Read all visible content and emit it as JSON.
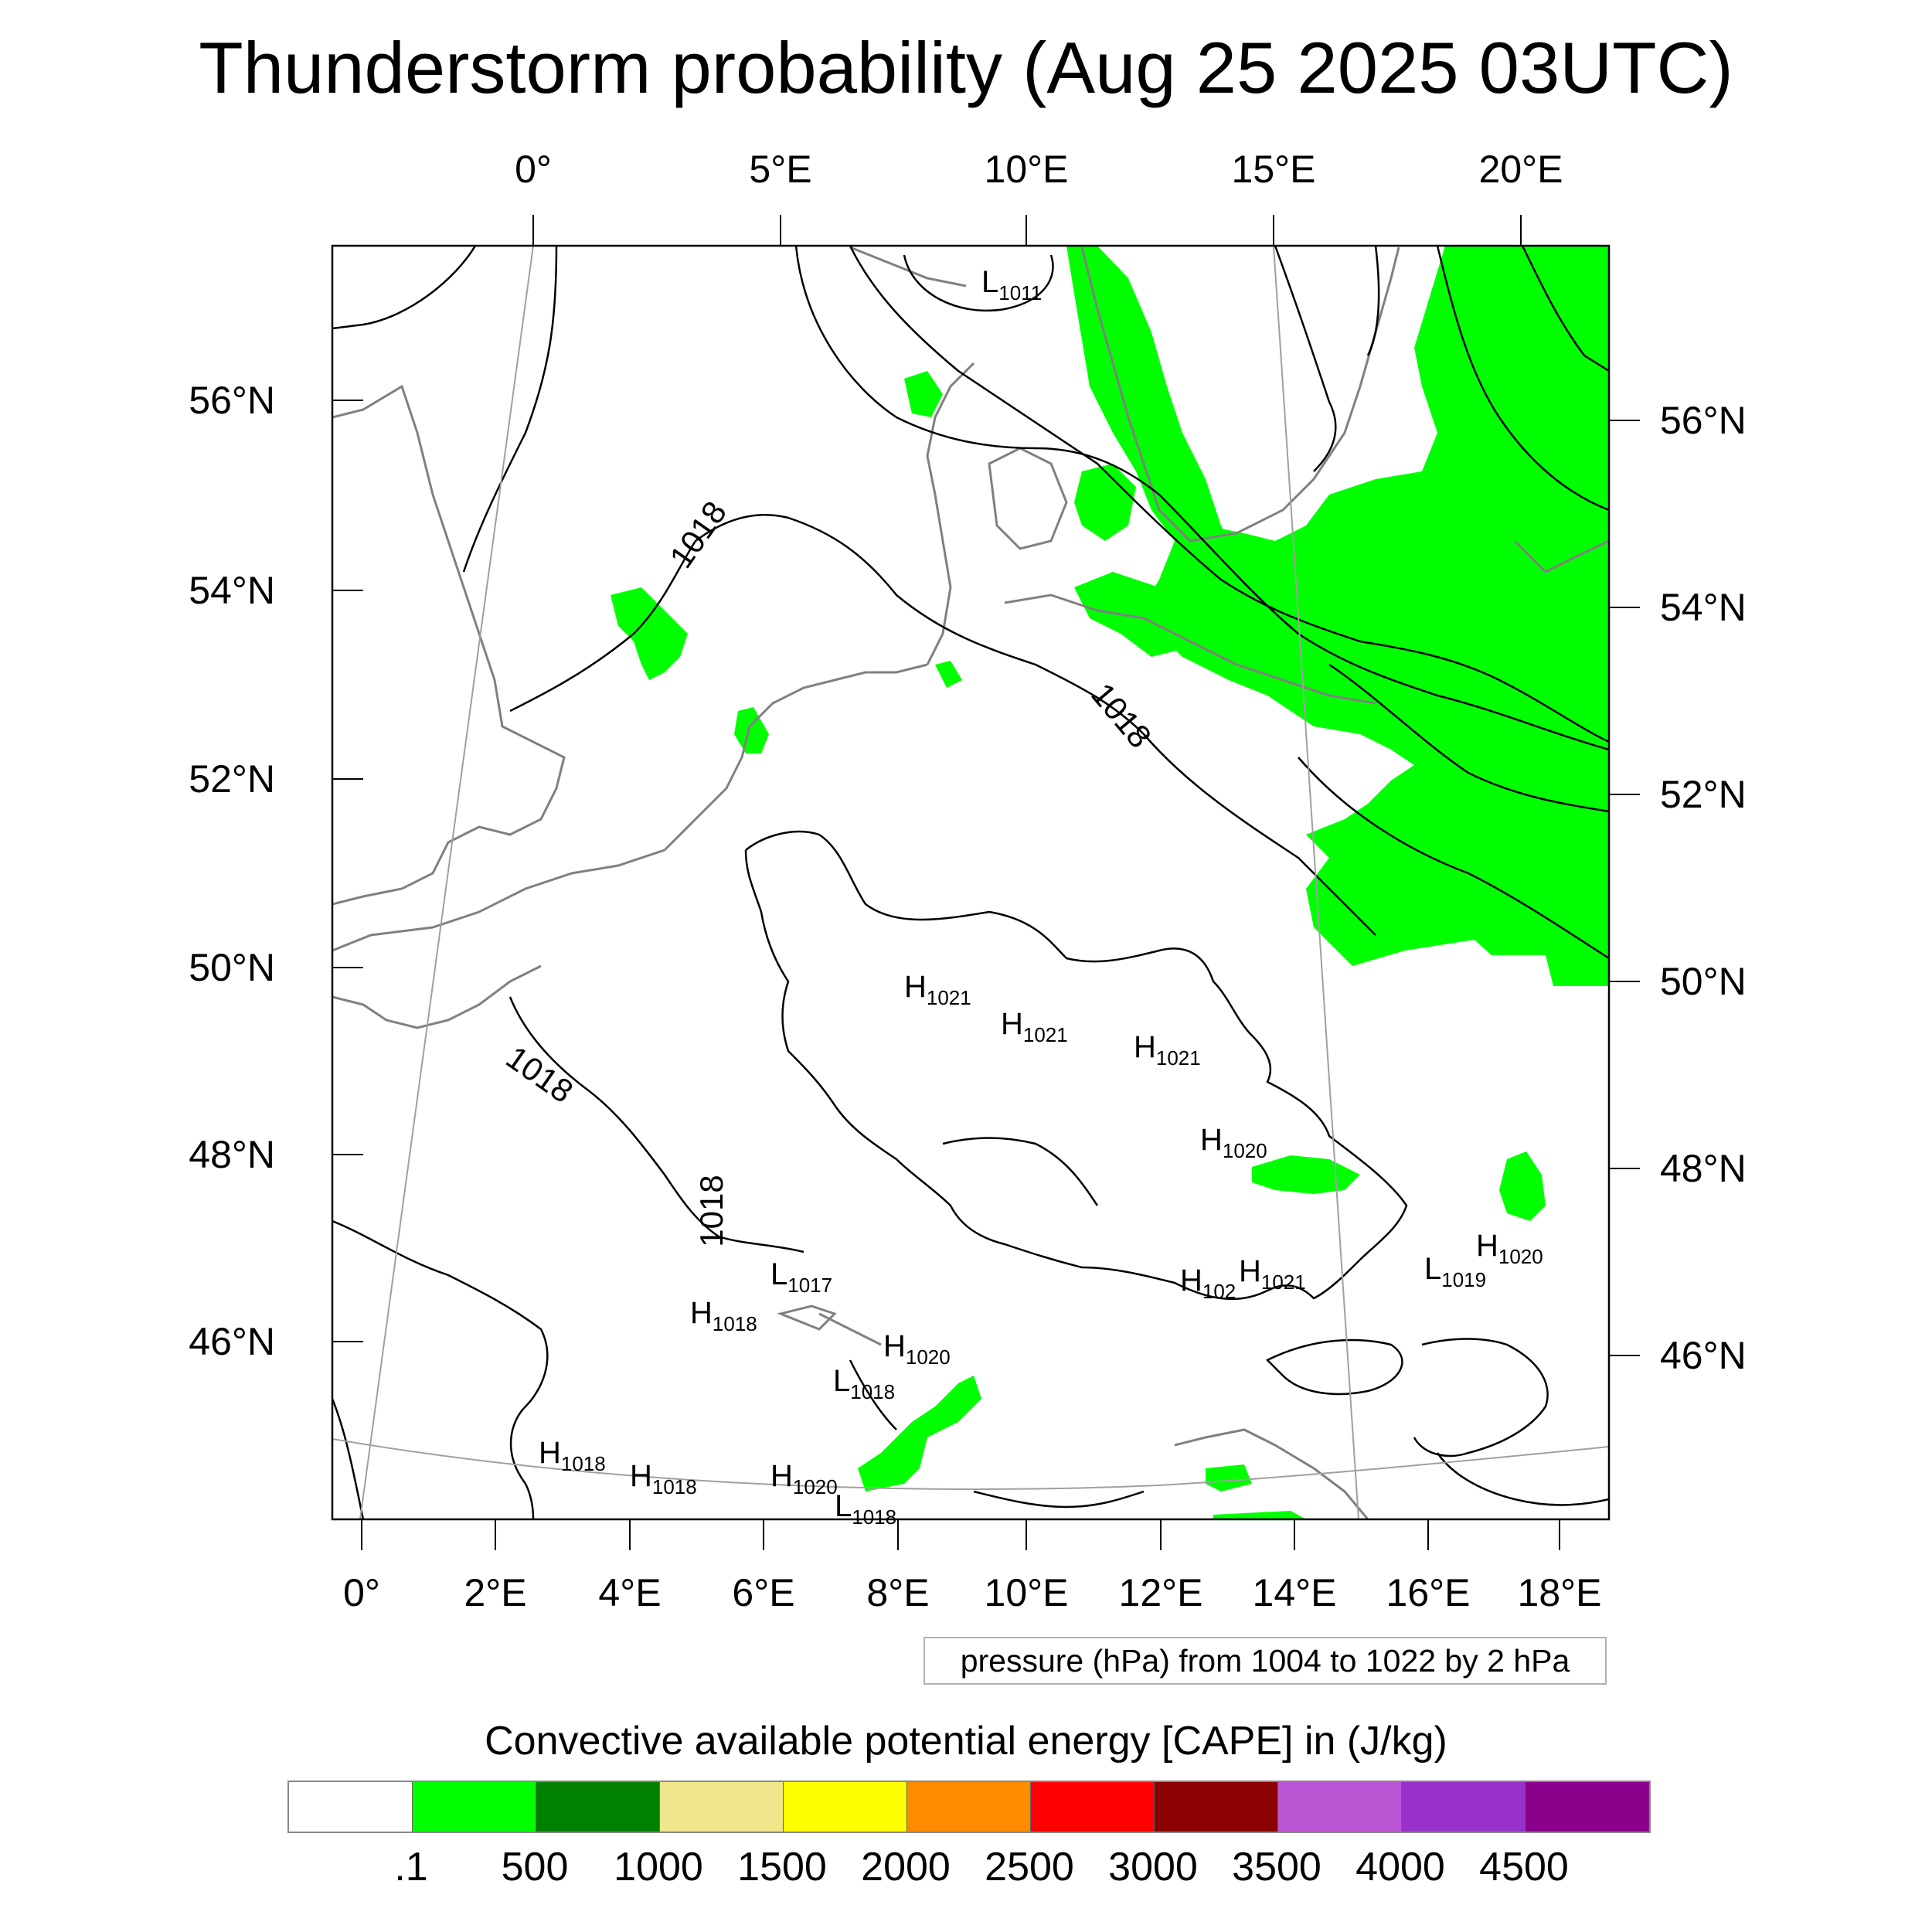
{
  "title": "Thunderstorm probability (Aug 25 2025 03UTC)",
  "top_lon_labels": [
    "0°",
    "5°E",
    "10°E",
    "15°E",
    "20°E"
  ],
  "bottom_lon_labels": [
    "0°",
    "2°E",
    "4°E",
    "6°E",
    "8°E",
    "10°E",
    "12°E",
    "14°E",
    "16°E",
    "18°E"
  ],
  "left_lat_labels": [
    "56°N",
    "54°N",
    "52°N",
    "50°N",
    "48°N",
    "46°N"
  ],
  "right_lat_labels": [
    "56°N",
    "54°N",
    "52°N",
    "50°N",
    "48°N",
    "46°N"
  ],
  "contour_labels": [
    "1018",
    "1018",
    "1018",
    "1018"
  ],
  "pressure_centers": [
    {
      "letter": "L",
      "value": "1011"
    },
    {
      "letter": "H",
      "value": "1021"
    },
    {
      "letter": "H",
      "value": "1021"
    },
    {
      "letter": "H",
      "value": "1021"
    },
    {
      "letter": "H",
      "value": "1020"
    },
    {
      "letter": "L",
      "value": "1017"
    },
    {
      "letter": "H",
      "value": "1018"
    },
    {
      "letter": "H",
      "value": "1020"
    },
    {
      "letter": "L",
      "value": "1018"
    },
    {
      "letter": "H",
      "value": "102"
    },
    {
      "letter": "H",
      "value": "1021"
    },
    {
      "letter": "L",
      "value": "1019"
    },
    {
      "letter": "H",
      "value": "1020"
    },
    {
      "letter": "H",
      "value": "1018"
    },
    {
      "letter": "H",
      "value": "1018"
    },
    {
      "letter": "H",
      "value": "1020"
    },
    {
      "letter": "L",
      "value": "1018"
    }
  ],
  "contour_info": "pressure (hPa) from 1004 to 1022 by 2 hPa",
  "legend_title": "Convective available potential energy [CAPE] in (J/kg)",
  "legend_colors": [
    "#ffffff",
    "#00ff00",
    "#008000",
    "#f0e68c",
    "#ffff00",
    "#ff8c00",
    "#ff0000",
    "#8b0000",
    "#ba55d3",
    "#9932cc",
    "#8b008b"
  ],
  "legend_labels": [
    ".1",
    "500",
    "1000",
    "1500",
    "2000",
    "2500",
    "3000",
    "3500",
    "4000",
    "4500"
  ],
  "colors": {
    "cape_fill": "#00ff00",
    "coastline": "#808080",
    "isobar": "#000000",
    "graticule": "#a0a0a0"
  }
}
